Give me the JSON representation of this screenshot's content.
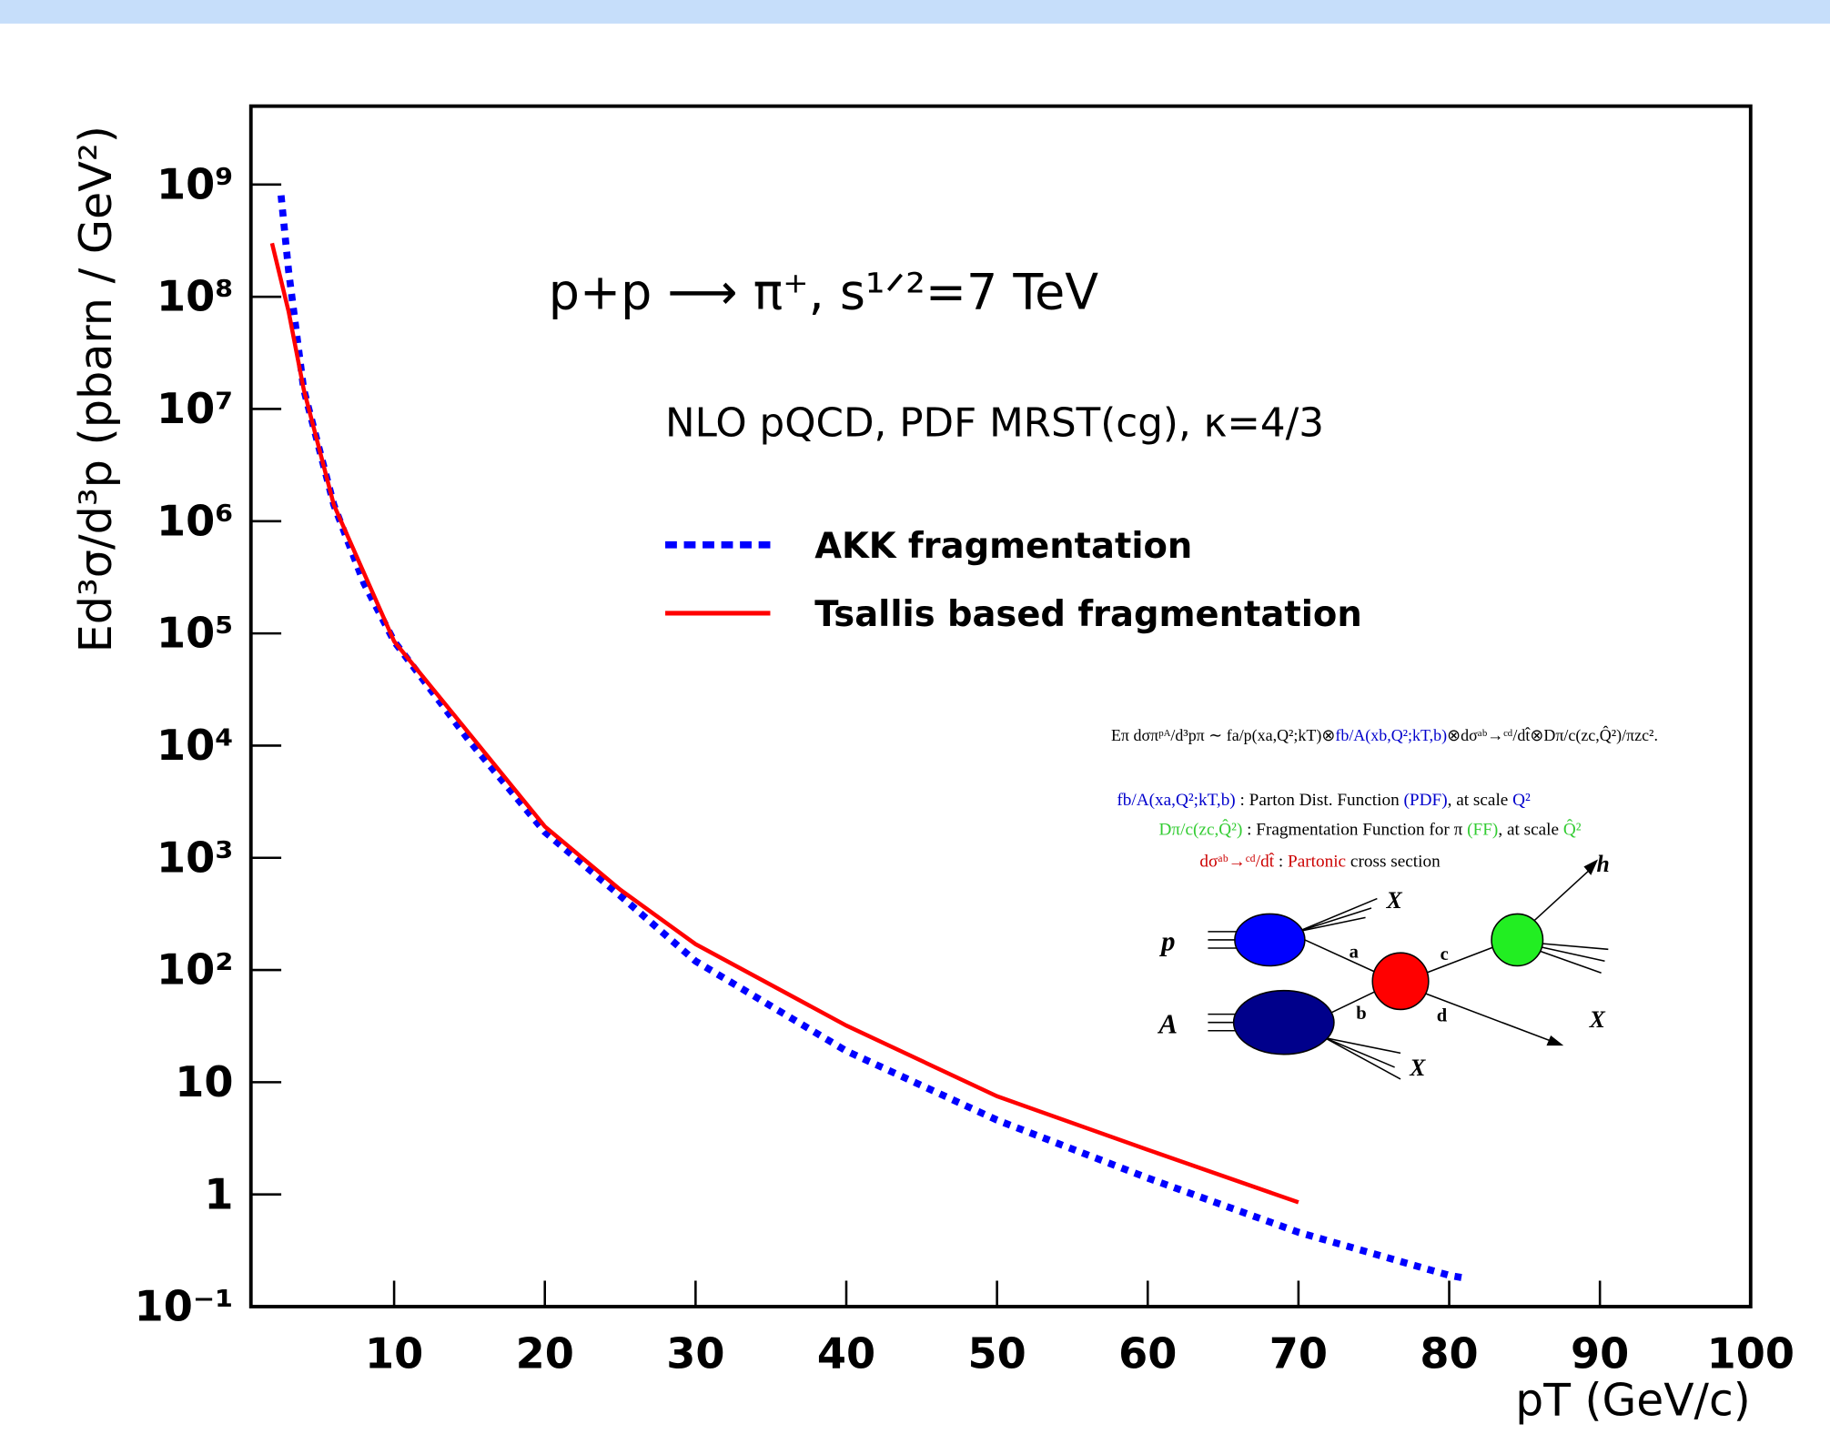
{
  "chart_data": {
    "type": "line",
    "title": "p+p ⟶ π⁺, s¹ᐟ²=7 TeV",
    "subtitle": "NLO pQCD, PDF MRST(cg), κ=4/3",
    "x_label": "pT (GeV/c)",
    "y_label": "Ed³σ/d³p (pbarn / GeV²)",
    "log_y": true,
    "xlim": [
      0.5,
      100
    ],
    "ylim": [
      0.1,
      5000000000
    ],
    "xticks": [
      10,
      20,
      30,
      40,
      50,
      60,
      70,
      80,
      90,
      100
    ],
    "yticks": [
      {
        "value": 0.1,
        "label": "10⁻¹"
      },
      1,
      10,
      {
        "value": 100,
        "label": "10²"
      },
      {
        "value": 1000,
        "label": "10³"
      },
      {
        "value": 10000,
        "label": "10⁴"
      },
      {
        "value": 100000,
        "label": "10⁵"
      },
      {
        "value": 1000000,
        "label": "10⁶"
      },
      {
        "value": 10000000,
        "label": "10⁷"
      },
      {
        "value": 100000000,
        "label": "10⁸"
      },
      {
        "value": 1000000000,
        "label": "10⁹"
      }
    ],
    "series": [
      {
        "name": "AKK fragmentation",
        "color": "#0000ff",
        "dashed": true,
        "x": [
          2.5,
          3,
          4,
          6,
          8,
          10,
          15,
          20,
          25,
          30,
          40,
          50,
          60,
          70,
          80,
          81
        ],
        "values": [
          800000000,
          170000000,
          15000000,
          1400000,
          280000,
          85000,
          11000,
          1700,
          460,
          120,
          19,
          4.6,
          1.4,
          0.46,
          0.19,
          0.18
        ]
      },
      {
        "name": "Tsallis based fragmentation",
        "color": "#ff0000",
        "dashed": false,
        "x": [
          1.9,
          3,
          4,
          6,
          10,
          20,
          25,
          30,
          40,
          50,
          60,
          70
        ],
        "values": [
          300000000,
          74000000,
          15000000,
          1400000,
          85000,
          1900,
          520,
          170,
          32,
          7.5,
          2.5,
          0.85
        ]
      }
    ],
    "inset": {
      "formula_lines": [
        [
          {
            "text": "Eπ dσπᵖᴬ/d³pπ ∼ fa/p(xa,Q²;kT)⊗",
            "color": "#000000"
          },
          {
            "text": "fb/A(xb,Q²;kT,b)",
            "color": "#0000cc"
          },
          {
            "text": "⊗dσᵃᵇ→ᶜᵈ/dt̂⊗Dπ/c(zc,Q̂²)/πzc².",
            "color": "#000000"
          }
        ],
        [
          {
            "text": "fb/A(xa,Q²;kT,b)",
            "color": "#0000cc"
          },
          {
            "text": " : Parton Dist. Function ",
            "color": "#000000"
          },
          {
            "text": "(PDF)",
            "color": "#0000cc"
          },
          {
            "text": ", at scale ",
            "color": "#000000"
          },
          {
            "text": "Q²",
            "color": "#0000cc"
          }
        ],
        [
          {
            "text": "Dπ/c(zc,Q̂²)",
            "color": "#33cc33"
          },
          {
            "text": " : Fragmentation Function for π ",
            "color": "#000000"
          },
          {
            "text": "(FF)",
            "color": "#33cc33"
          },
          {
            "text": ", at scale ",
            "color": "#000000"
          },
          {
            "text": "Q̂²",
            "color": "#33cc33"
          }
        ],
        [
          {
            "text": "dσᵃᵇ→ᶜᵈ/dt̂",
            "color": "#cc0000"
          },
          {
            "text": " : ",
            "color": "#000000"
          },
          {
            "text": "Partonic",
            "color": "#cc0000"
          },
          {
            "text": " cross section",
            "color": "#000000"
          }
        ]
      ],
      "diagram_labels": [
        "p",
        "A",
        "a",
        "b",
        "c",
        "d",
        "X",
        "X",
        "X",
        "h"
      ]
    }
  }
}
